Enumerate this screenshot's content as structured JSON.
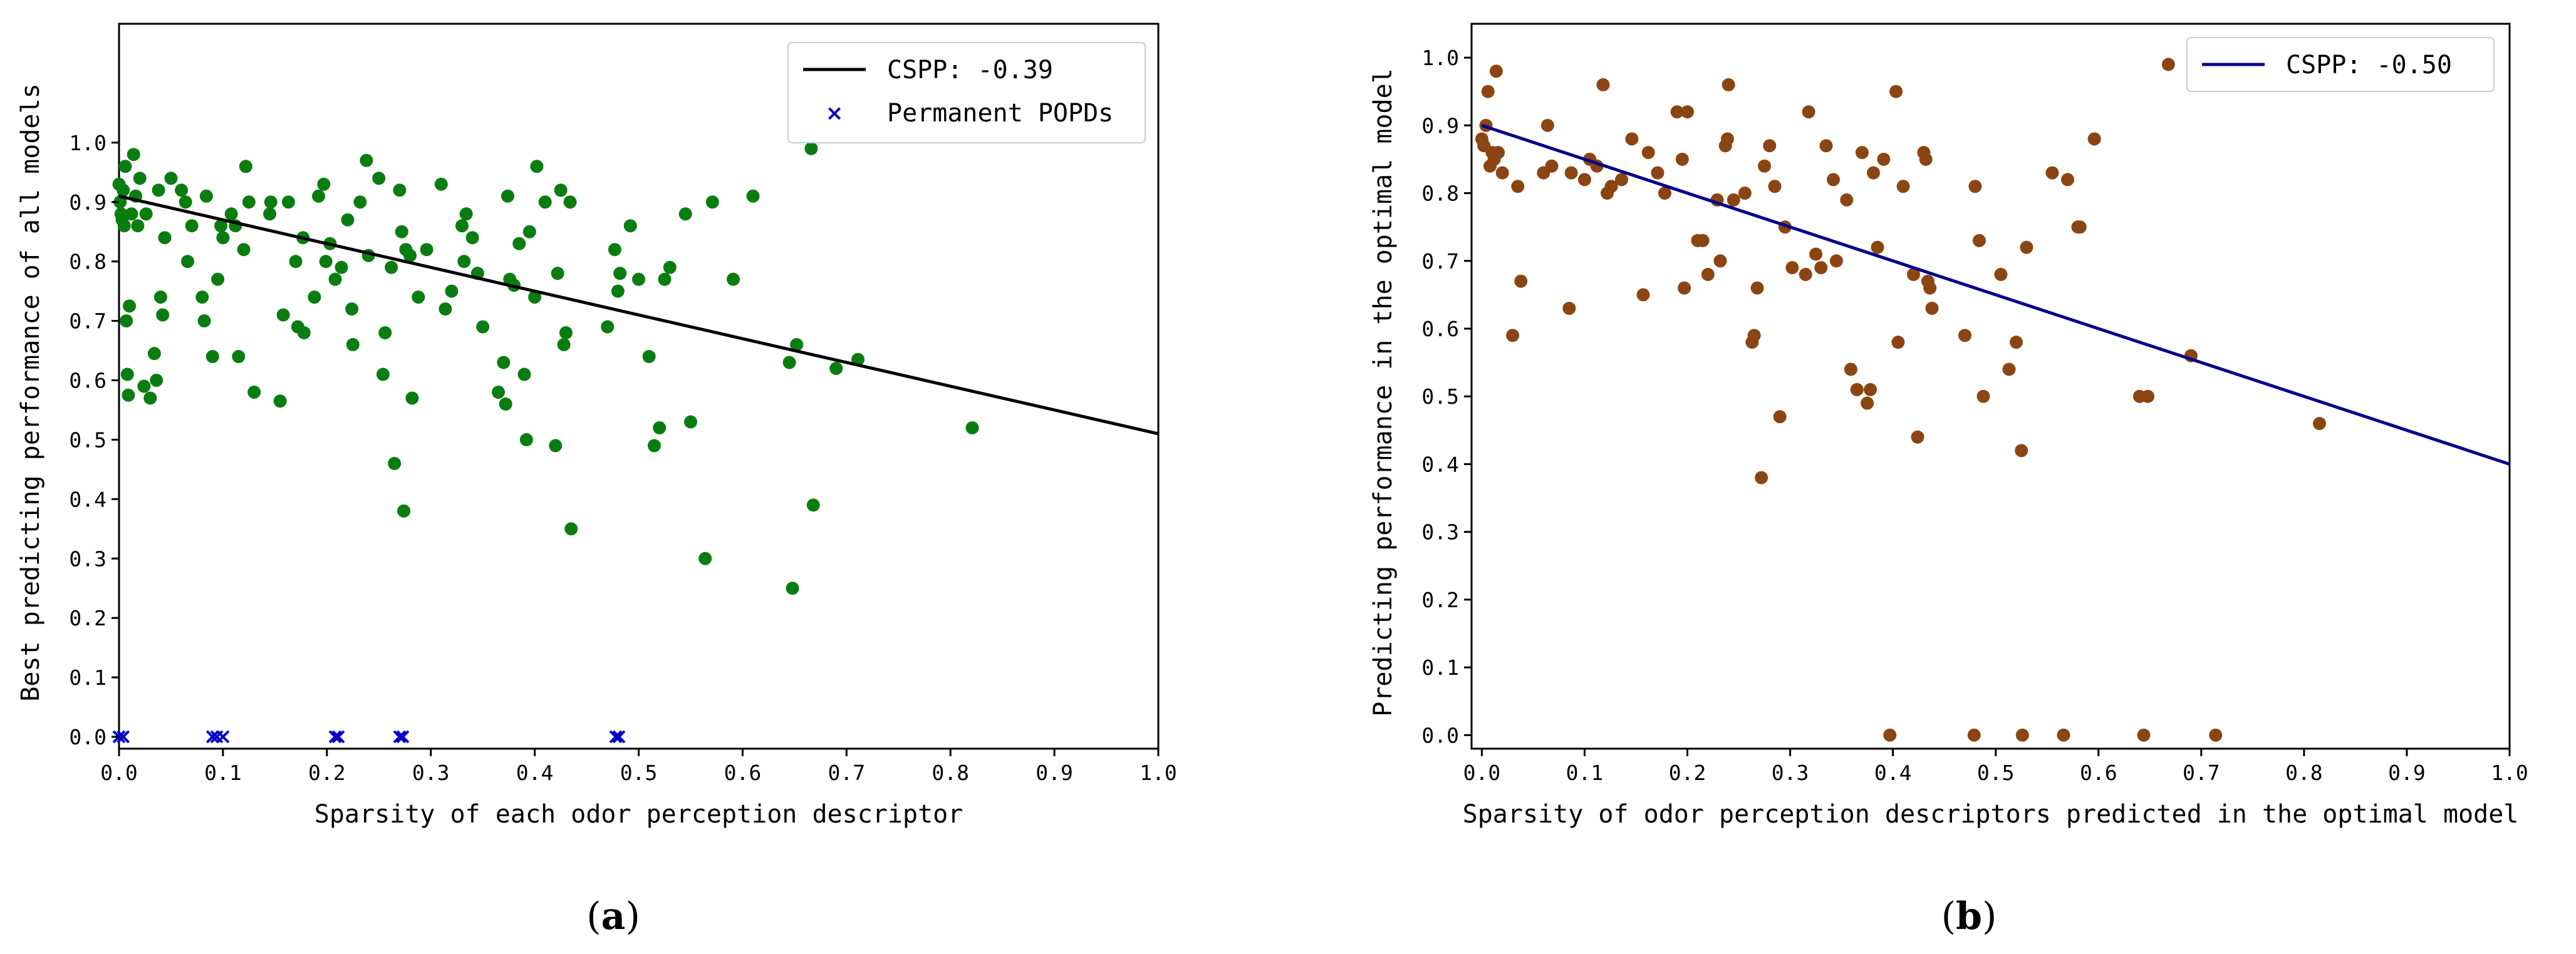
{
  "chart_data": [
    {
      "type": "scatter",
      "caption": {
        "open": "(",
        "letter": "a",
        "close": ")"
      },
      "xlabel": "Sparsity of each odor perception descriptor",
      "ylabel": "Best predicting performance of all models",
      "xlim": [
        0,
        1.0
      ],
      "ylim": [
        -0.02,
        1.2
      ],
      "xticks": [
        "0.0",
        "0.1",
        "0.2",
        "0.3",
        "0.4",
        "0.5",
        "0.6",
        "0.7",
        "0.8",
        "0.9",
        "1.0"
      ],
      "yticks": [
        "0.0",
        "0.1",
        "0.2",
        "0.3",
        "0.4",
        "0.5",
        "0.6",
        "0.7",
        "0.8",
        "0.9",
        "1.0"
      ],
      "legend": {
        "position": "top-right",
        "entries": [
          "CSPP: -0.39",
          "Permanent POPDs"
        ]
      },
      "regression": {
        "x": [
          0,
          1.0
        ],
        "y": [
          0.91,
          0.51
        ],
        "color": "#000000"
      },
      "points_color": "#0a7d10",
      "points": [
        [
          0.0,
          0.93
        ],
        [
          0.001,
          0.9
        ],
        [
          0.002,
          0.88
        ],
        [
          0.003,
          0.87
        ],
        [
          0.004,
          0.92
        ],
        [
          0.005,
          0.86
        ],
        [
          0.006,
          0.96
        ],
        [
          0.007,
          0.7
        ],
        [
          0.008,
          0.61
        ],
        [
          0.009,
          0.575
        ],
        [
          0.01,
          0.725
        ],
        [
          0.012,
          0.88
        ],
        [
          0.014,
          0.98
        ],
        [
          0.016,
          0.91
        ],
        [
          0.018,
          0.86
        ],
        [
          0.02,
          0.94
        ],
        [
          0.024,
          0.59
        ],
        [
          0.026,
          0.88
        ],
        [
          0.03,
          0.57
        ],
        [
          0.034,
          0.645
        ],
        [
          0.036,
          0.6
        ],
        [
          0.038,
          0.92
        ],
        [
          0.04,
          0.74
        ],
        [
          0.042,
          0.71
        ],
        [
          0.044,
          0.84
        ],
        [
          0.05,
          0.94
        ],
        [
          0.06,
          0.92
        ],
        [
          0.064,
          0.9
        ],
        [
          0.066,
          0.8
        ],
        [
          0.07,
          0.86
        ],
        [
          0.08,
          0.74
        ],
        [
          0.082,
          0.7
        ],
        [
          0.084,
          0.91
        ],
        [
          0.09,
          0.64
        ],
        [
          0.095,
          0.77
        ],
        [
          0.098,
          0.86
        ],
        [
          0.1,
          0.84
        ],
        [
          0.108,
          0.88
        ],
        [
          0.112,
          0.86
        ],
        [
          0.115,
          0.64
        ],
        [
          0.12,
          0.82
        ],
        [
          0.122,
          0.96
        ],
        [
          0.125,
          0.9
        ],
        [
          0.13,
          0.58
        ],
        [
          0.145,
          0.88
        ],
        [
          0.146,
          0.9
        ],
        [
          0.155,
          0.565
        ],
        [
          0.158,
          0.71
        ],
        [
          0.163,
          0.9
        ],
        [
          0.17,
          0.8
        ],
        [
          0.172,
          0.69
        ],
        [
          0.177,
          0.84
        ],
        [
          0.178,
          0.68
        ],
        [
          0.188,
          0.74
        ],
        [
          0.192,
          0.91
        ],
        [
          0.197,
          0.93
        ],
        [
          0.199,
          0.8
        ],
        [
          0.203,
          0.83
        ],
        [
          0.208,
          0.77
        ],
        [
          0.214,
          0.79
        ],
        [
          0.22,
          0.87
        ],
        [
          0.224,
          0.72
        ],
        [
          0.225,
          0.66
        ],
        [
          0.232,
          0.9
        ],
        [
          0.238,
          0.97
        ],
        [
          0.24,
          0.81
        ],
        [
          0.25,
          0.94
        ],
        [
          0.254,
          0.61
        ],
        [
          0.256,
          0.68
        ],
        [
          0.262,
          0.79
        ],
        [
          0.265,
          0.46
        ],
        [
          0.27,
          0.92
        ],
        [
          0.272,
          0.85
        ],
        [
          0.274,
          0.38
        ],
        [
          0.276,
          0.82
        ],
        [
          0.28,
          0.81
        ],
        [
          0.282,
          0.57
        ],
        [
          0.288,
          0.74
        ],
        [
          0.296,
          0.82
        ],
        [
          0.31,
          0.93
        ],
        [
          0.314,
          0.72
        ],
        [
          0.32,
          0.75
        ],
        [
          0.33,
          0.86
        ],
        [
          0.332,
          0.8
        ],
        [
          0.334,
          0.88
        ],
        [
          0.34,
          0.84
        ],
        [
          0.345,
          0.78
        ],
        [
          0.35,
          0.69
        ],
        [
          0.365,
          0.58
        ],
        [
          0.37,
          0.63
        ],
        [
          0.372,
          0.56
        ],
        [
          0.374,
          0.91
        ],
        [
          0.376,
          0.77
        ],
        [
          0.38,
          0.76
        ],
        [
          0.385,
          0.83
        ],
        [
          0.39,
          0.61
        ],
        [
          0.392,
          0.5
        ],
        [
          0.395,
          0.85
        ],
        [
          0.4,
          0.74
        ],
        [
          0.402,
          0.96
        ],
        [
          0.41,
          0.9
        ],
        [
          0.42,
          0.49
        ],
        [
          0.422,
          0.78
        ],
        [
          0.425,
          0.92
        ],
        [
          0.428,
          0.66
        ],
        [
          0.43,
          0.68
        ],
        [
          0.434,
          0.9
        ],
        [
          0.435,
          0.35
        ],
        [
          0.47,
          0.69
        ],
        [
          0.477,
          0.82
        ],
        [
          0.48,
          0.75
        ],
        [
          0.482,
          0.78
        ],
        [
          0.492,
          0.86
        ],
        [
          0.5,
          0.77
        ],
        [
          0.51,
          0.64
        ],
        [
          0.515,
          0.49
        ],
        [
          0.52,
          0.52
        ],
        [
          0.525,
          0.77
        ],
        [
          0.53,
          0.79
        ],
        [
          0.545,
          0.88
        ],
        [
          0.55,
          0.53
        ],
        [
          0.564,
          0.3
        ],
        [
          0.571,
          0.9
        ],
        [
          0.591,
          0.77
        ],
        [
          0.61,
          0.91
        ],
        [
          0.645,
          0.63
        ],
        [
          0.648,
          0.25
        ],
        [
          0.652,
          0.66
        ],
        [
          0.666,
          0.99
        ],
        [
          0.668,
          0.39
        ],
        [
          0.69,
          0.62
        ],
        [
          0.711,
          0.635
        ],
        [
          0.821,
          0.52
        ]
      ],
      "popd_color": "#0000cc",
      "popd_points": [
        [
          0.0,
          0.0
        ],
        [
          0.004,
          0.0
        ],
        [
          0.09,
          0.0
        ],
        [
          0.094,
          0.0
        ],
        [
          0.1,
          0.0
        ],
        [
          0.208,
          0.0
        ],
        [
          0.211,
          0.0
        ],
        [
          0.27,
          0.0
        ],
        [
          0.273,
          0.0
        ],
        [
          0.478,
          0.0
        ],
        [
          0.481,
          0.0
        ]
      ]
    },
    {
      "type": "scatter",
      "caption": {
        "open": "(",
        "letter": "b",
        "close": ")"
      },
      "xlabel": "Sparsity of odor perception descriptors predicted in the optimal model",
      "ylabel": "Predicting performance in the optimal model",
      "xlim": [
        -0.01,
        1.0
      ],
      "ylim": [
        -0.02,
        1.05
      ],
      "xticks": [
        "0.0",
        "0.1",
        "0.2",
        "0.3",
        "0.4",
        "0.5",
        "0.6",
        "0.7",
        "0.8",
        "0.9",
        "1.0"
      ],
      "yticks": [
        "0.0",
        "0.1",
        "0.2",
        "0.3",
        "0.4",
        "0.5",
        "0.6",
        "0.7",
        "0.8",
        "0.9",
        "1.0"
      ],
      "legend": {
        "position": "top-right",
        "entries": [
          "CSPP: -0.50"
        ]
      },
      "regression": {
        "x": [
          0,
          1.0
        ],
        "y": [
          0.9,
          0.4
        ],
        "color": "#00008b"
      },
      "points_color": "#8b4513",
      "points": [
        [
          0.0,
          0.88
        ],
        [
          0.002,
          0.87
        ],
        [
          0.004,
          0.9
        ],
        [
          0.006,
          0.95
        ],
        [
          0.008,
          0.84
        ],
        [
          0.01,
          0.86
        ],
        [
          0.012,
          0.85
        ],
        [
          0.014,
          0.98
        ],
        [
          0.016,
          0.86
        ],
        [
          0.02,
          0.83
        ],
        [
          0.03,
          0.59
        ],
        [
          0.035,
          0.81
        ],
        [
          0.038,
          0.67
        ],
        [
          0.06,
          0.83
        ],
        [
          0.064,
          0.9
        ],
        [
          0.068,
          0.84
        ],
        [
          0.085,
          0.63
        ],
        [
          0.087,
          0.83
        ],
        [
          0.1,
          0.82
        ],
        [
          0.105,
          0.85
        ],
        [
          0.112,
          0.84
        ],
        [
          0.118,
          0.96
        ],
        [
          0.122,
          0.8
        ],
        [
          0.126,
          0.81
        ],
        [
          0.136,
          0.82
        ],
        [
          0.146,
          0.88
        ],
        [
          0.157,
          0.65
        ],
        [
          0.162,
          0.86
        ],
        [
          0.171,
          0.83
        ],
        [
          0.178,
          0.8
        ],
        [
          0.19,
          0.92
        ],
        [
          0.195,
          0.85
        ],
        [
          0.197,
          0.66
        ],
        [
          0.2,
          0.92
        ],
        [
          0.21,
          0.73
        ],
        [
          0.215,
          0.73
        ],
        [
          0.22,
          0.68
        ],
        [
          0.229,
          0.79
        ],
        [
          0.232,
          0.7
        ],
        [
          0.237,
          0.87
        ],
        [
          0.239,
          0.88
        ],
        [
          0.24,
          0.96
        ],
        [
          0.245,
          0.79
        ],
        [
          0.256,
          0.8
        ],
        [
          0.263,
          0.58
        ],
        [
          0.265,
          0.59
        ],
        [
          0.268,
          0.66
        ],
        [
          0.272,
          0.38
        ],
        [
          0.275,
          0.84
        ],
        [
          0.28,
          0.87
        ],
        [
          0.285,
          0.81
        ],
        [
          0.29,
          0.47
        ],
        [
          0.295,
          0.75
        ],
        [
          0.302,
          0.69
        ],
        [
          0.315,
          0.68
        ],
        [
          0.318,
          0.92
        ],
        [
          0.325,
          0.71
        ],
        [
          0.33,
          0.69
        ],
        [
          0.335,
          0.87
        ],
        [
          0.342,
          0.82
        ],
        [
          0.345,
          0.7
        ],
        [
          0.355,
          0.79
        ],
        [
          0.359,
          0.54
        ],
        [
          0.365,
          0.51
        ],
        [
          0.37,
          0.86
        ],
        [
          0.375,
          0.49
        ],
        [
          0.378,
          0.51
        ],
        [
          0.381,
          0.83
        ],
        [
          0.385,
          0.72
        ],
        [
          0.391,
          0.85
        ],
        [
          0.397,
          0.0
        ],
        [
          0.403,
          0.95
        ],
        [
          0.405,
          0.58
        ],
        [
          0.41,
          0.81
        ],
        [
          0.42,
          0.68
        ],
        [
          0.424,
          0.44
        ],
        [
          0.43,
          0.86
        ],
        [
          0.432,
          0.85
        ],
        [
          0.434,
          0.67
        ],
        [
          0.436,
          0.66
        ],
        [
          0.438,
          0.63
        ],
        [
          0.47,
          0.59
        ],
        [
          0.479,
          0.0
        ],
        [
          0.48,
          0.81
        ],
        [
          0.484,
          0.73
        ],
        [
          0.488,
          0.5
        ],
        [
          0.505,
          0.68
        ],
        [
          0.513,
          0.54
        ],
        [
          0.52,
          0.58
        ],
        [
          0.525,
          0.42
        ],
        [
          0.526,
          0.0
        ],
        [
          0.53,
          0.72
        ],
        [
          0.555,
          0.83
        ],
        [
          0.566,
          0.0
        ],
        [
          0.57,
          0.82
        ],
        [
          0.58,
          0.75
        ],
        [
          0.582,
          0.75
        ],
        [
          0.596,
          0.88
        ],
        [
          0.64,
          0.5
        ],
        [
          0.644,
          0.0
        ],
        [
          0.648,
          0.5
        ],
        [
          0.668,
          0.99
        ],
        [
          0.69,
          0.56
        ],
        [
          0.714,
          0.0
        ],
        [
          0.815,
          0.46
        ]
      ]
    }
  ]
}
